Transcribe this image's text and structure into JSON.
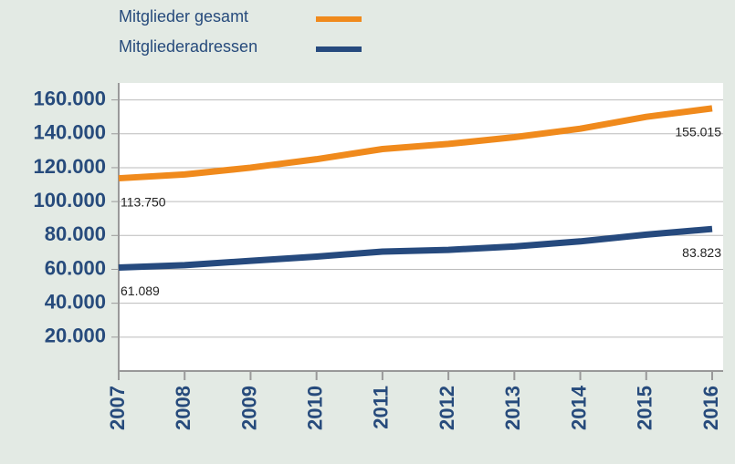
{
  "chart_data": {
    "type": "line",
    "categories": [
      "2007",
      "2008",
      "2009",
      "2010",
      "2011",
      "2012",
      "2013",
      "2014",
      "2015",
      "2016"
    ],
    "series": [
      {
        "name": "Mitglieder gesamt",
        "color": "#f08a1c",
        "values": [
          113750,
          116000,
          120000,
          125000,
          131000,
          134000,
          138000,
          143000,
          150000,
          155015
        ],
        "value_labels": [
          "113.750",
          null,
          null,
          null,
          null,
          null,
          null,
          null,
          null,
          "155.015"
        ]
      },
      {
        "name": "Mitgliederadressen",
        "color": "#264a7e",
        "values": [
          61089,
          62500,
          65000,
          67500,
          70500,
          71500,
          73500,
          76500,
          80500,
          83823
        ],
        "value_labels": [
          "61.089",
          null,
          null,
          null,
          null,
          null,
          null,
          null,
          null,
          "83.823"
        ]
      }
    ],
    "ylim": [
      0,
      170000
    ],
    "yticks": [
      {
        "value": 20000,
        "label": "20.000"
      },
      {
        "value": 40000,
        "label": "40.000"
      },
      {
        "value": 60000,
        "label": "60.000"
      },
      {
        "value": 80000,
        "label": "80.000"
      },
      {
        "value": 100000,
        "label": "100.000"
      },
      {
        "value": 120000,
        "label": "120.000"
      },
      {
        "value": 140000,
        "label": "140.000"
      },
      {
        "value": 160000,
        "label": "160.000"
      }
    ],
    "grid": true
  }
}
